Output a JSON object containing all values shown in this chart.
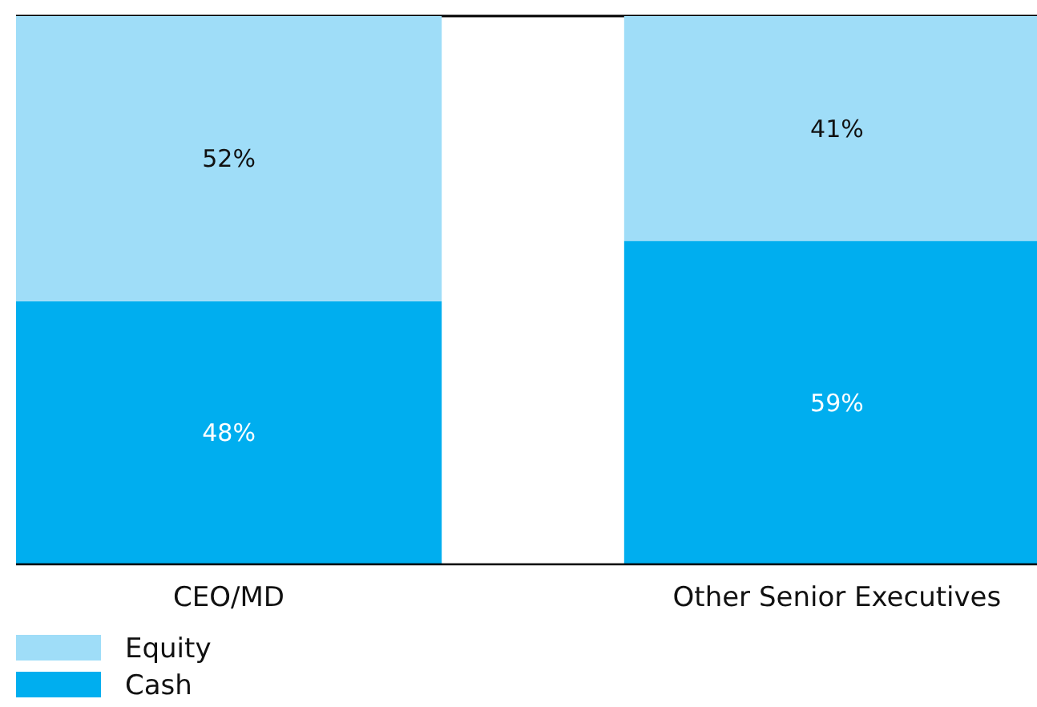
{
  "chart_data": {
    "type": "bar",
    "stacked": true,
    "categories": [
      "CEO/MD",
      "Other Senior Executives"
    ],
    "ylim": [
      0,
      100
    ],
    "tick_labels": "x",
    "legend": "bottom left",
    "series": [
      {
        "name": "Cash",
        "color": "#00aeef",
        "values": [
          48,
          59
        ],
        "value_labels": [
          "48%",
          "59%"
        ]
      },
      {
        "name": "Equity",
        "color": "#9fddf8",
        "values": [
          52,
          41
        ],
        "value_labels": [
          "52%",
          "41%"
        ]
      }
    ]
  }
}
